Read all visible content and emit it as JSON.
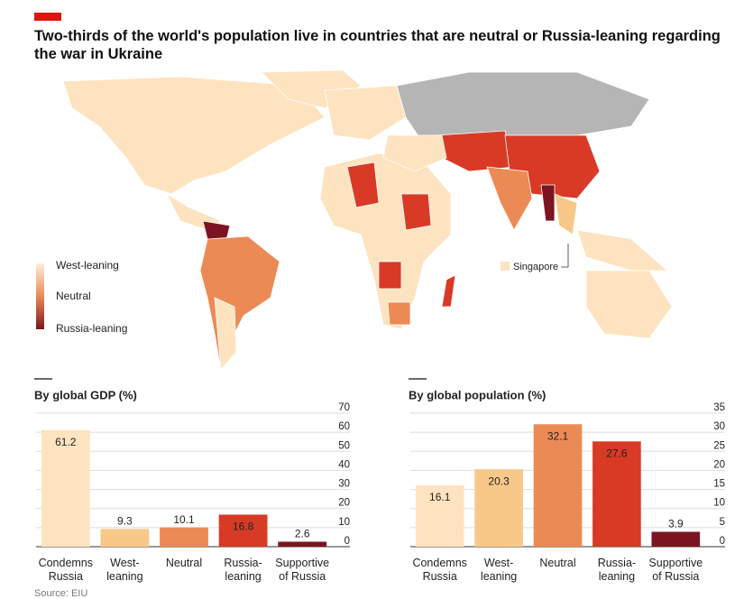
{
  "title": "Two-thirds of the world's population live in countries that are neutral or Russia-leaning regarding the war in Ukraine",
  "map": {
    "legend": [
      "West-leaning",
      "Neutral",
      "Russia-leaning"
    ],
    "annotation": "Singapore"
  },
  "chart_data": [
    {
      "type": "bar",
      "title": "By global GDP (%)",
      "categories": [
        "Condemns Russia",
        "West-leaning",
        "Neutral",
        "Russia-leaning",
        "Supportive of Russia"
      ],
      "values": [
        61.2,
        9.3,
        10.1,
        16.8,
        2.6
      ],
      "colors": [
        "#fde3bf",
        "#f8c889",
        "#ec8a55",
        "#d83a26",
        "#7c1521"
      ],
      "ylim": [
        0,
        70
      ],
      "yticks": [
        0,
        10,
        20,
        30,
        40,
        50,
        60,
        70
      ],
      "grid": true
    },
    {
      "type": "bar",
      "title": "By global population (%)",
      "categories": [
        "Condemns Russia",
        "West-leaning",
        "Neutral",
        "Russia-leaning",
        "Supportive of Russia"
      ],
      "values": [
        16.1,
        20.3,
        32.1,
        27.6,
        3.9
      ],
      "colors": [
        "#fde3bf",
        "#f8c889",
        "#ec8a55",
        "#d83a26",
        "#7c1521"
      ],
      "ylim": [
        0,
        35
      ],
      "yticks": [
        0,
        5,
        10,
        15,
        20,
        25,
        30,
        35
      ],
      "grid": true
    }
  ],
  "source": "Source: EIU"
}
